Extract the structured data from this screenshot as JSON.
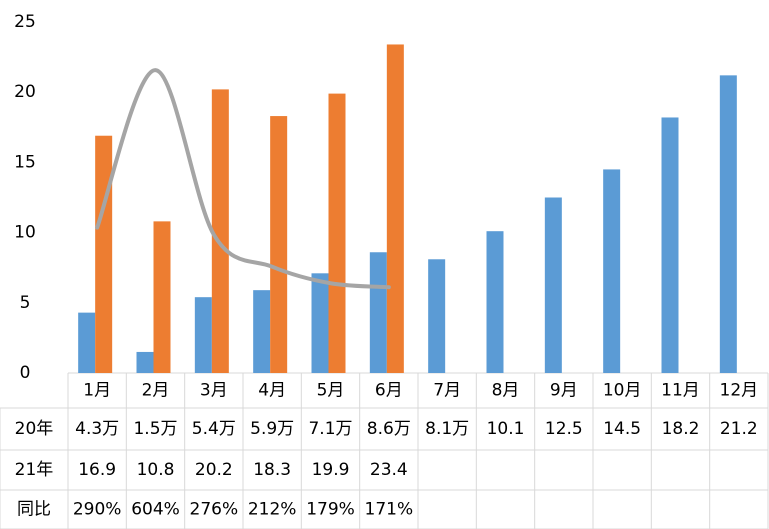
{
  "chart_data": {
    "type": "bar",
    "categories": [
      "1月",
      "2月",
      "3月",
      "4月",
      "5月",
      "6月",
      "7月",
      "8月",
      "9月",
      "10月",
      "11月",
      "12月"
    ],
    "series": [
      {
        "name": "20年",
        "color": "#5b9bd5",
        "values": [
          4.3,
          1.5,
          5.4,
          5.9,
          7.1,
          8.6,
          8.1,
          10.1,
          12.5,
          14.5,
          18.2,
          21.2
        ],
        "value_labels": [
          "4.3万",
          "1.5万",
          "5.4万",
          "5.9万",
          "7.1万",
          "8.6万",
          "8.1万",
          "10.1",
          "12.5",
          "14.5",
          "18.2",
          "21.2"
        ]
      },
      {
        "name": "21年",
        "color": "#ed7d31",
        "values": [
          16.9,
          10.8,
          20.2,
          18.3,
          19.9,
          23.4,
          null,
          null,
          null,
          null,
          null,
          null
        ]
      },
      {
        "name": "同比",
        "type": "line",
        "axis": "y2",
        "color": "#a5a5a5",
        "values": [
          290,
          604,
          276,
          212,
          179,
          171,
          null,
          null,
          null,
          null,
          null,
          null
        ],
        "value_labels": [
          "290%",
          "604%",
          "276%",
          "212%",
          "179%",
          "171%",
          null,
          null,
          null,
          null,
          null,
          null
        ]
      }
    ],
    "ylim": [
      0,
      25
    ],
    "yticks": [
      0,
      5,
      10,
      15,
      20,
      25
    ],
    "y2lim": [
      0,
      700
    ]
  }
}
